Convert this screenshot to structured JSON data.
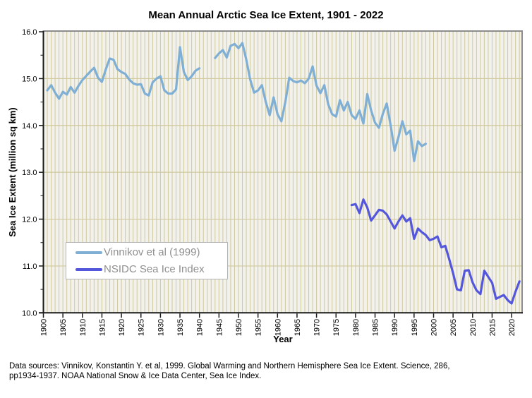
{
  "title": "Mean Annual Arctic Sea Ice Extent, 1901 - 2022",
  "footer": {
    "line1": "Data sources: Vinnikov, Konstantin Y. et al, 1999. Global Warming and Northern Hemisphere Sea Ice Extent. Science, 286,",
    "line2": "pp1934-1937. NOAA National Snow & Ice Data Center, Sea Ice Index."
  },
  "colors": {
    "plot_background": "#F2F1EB",
    "gridline": "#CFC99D",
    "frame_gray": "#8C8C8C",
    "axis_black": "#1A1A1A",
    "legend_border": "#B4B4B4",
    "legend_text": "#8F8F8F"
  },
  "chart_data": {
    "type": "line",
    "title": "Mean Annual Arctic Sea Ice Extent, 1901 - 2022",
    "xlabel": "Year",
    "ylabel": "Sea Ice Extent (million sq km)",
    "xlim": [
      1900,
      2022.5
    ],
    "ylim": [
      10.0,
      16.0
    ],
    "grid": "vertical gridline every year; horizontal gridline every 1.0",
    "legend_position": "inside plot, center-left",
    "x_ticks": [
      1900,
      1905,
      1910,
      1915,
      1920,
      1925,
      1930,
      1935,
      1940,
      1945,
      1950,
      1955,
      1960,
      1965,
      1970,
      1975,
      1980,
      1985,
      1990,
      1995,
      2000,
      2005,
      2010,
      2015,
      2020
    ],
    "x_tick_labels": [
      "1900",
      "1905",
      "1910",
      "1915",
      "1920",
      "1925",
      "1930",
      "1935",
      "1940",
      "1945",
      "1950",
      "1955",
      "1960",
      "1965",
      "1970",
      "1975",
      "1980",
      "1985",
      "1990",
      "1995",
      "2000",
      "2005",
      "2010",
      "2015",
      "2020"
    ],
    "y_ticks": [
      10.0,
      11.0,
      12.0,
      13.0,
      14.0,
      15.0,
      16.0
    ],
    "y_tick_labels": [
      "10.0",
      "11.0",
      "12.0",
      "13.0",
      "14.0",
      "15.0",
      "16.0"
    ],
    "series": [
      {
        "name": "Vinnikov et al (1999)",
        "color": "#7FAFD4",
        "note": "data gap 1941-1943",
        "points": [
          [
            1901,
            14.75
          ],
          [
            1902,
            14.86
          ],
          [
            1903,
            14.7
          ],
          [
            1904,
            14.57
          ],
          [
            1905,
            14.72
          ],
          [
            1906,
            14.66
          ],
          [
            1907,
            14.82
          ],
          [
            1908,
            14.7
          ],
          [
            1909,
            14.85
          ],
          [
            1910,
            14.97
          ],
          [
            1911,
            15.06
          ],
          [
            1912,
            15.15
          ],
          [
            1913,
            15.23
          ],
          [
            1914,
            15.02
          ],
          [
            1915,
            14.93
          ],
          [
            1916,
            15.2
          ],
          [
            1917,
            15.43
          ],
          [
            1918,
            15.4
          ],
          [
            1919,
            15.2
          ],
          [
            1920,
            15.14
          ],
          [
            1921,
            15.1
          ],
          [
            1922,
            14.98
          ],
          [
            1923,
            14.9
          ],
          [
            1924,
            14.87
          ],
          [
            1925,
            14.88
          ],
          [
            1926,
            14.68
          ],
          [
            1927,
            14.64
          ],
          [
            1928,
            14.92
          ],
          [
            1929,
            15.0
          ],
          [
            1930,
            15.05
          ],
          [
            1931,
            14.75
          ],
          [
            1932,
            14.68
          ],
          [
            1933,
            14.68
          ],
          [
            1934,
            14.77
          ],
          [
            1935,
            15.67
          ],
          [
            1936,
            15.14
          ],
          [
            1937,
            14.97
          ],
          [
            1938,
            15.05
          ],
          [
            1939,
            15.17
          ],
          [
            1940,
            15.22
          ],
          [
            1944,
            15.44
          ],
          [
            1945,
            15.54
          ],
          [
            1946,
            15.61
          ],
          [
            1947,
            15.45
          ],
          [
            1948,
            15.7
          ],
          [
            1949,
            15.74
          ],
          [
            1950,
            15.65
          ],
          [
            1951,
            15.76
          ],
          [
            1952,
            15.4
          ],
          [
            1953,
            14.98
          ],
          [
            1954,
            14.7
          ],
          [
            1955,
            14.75
          ],
          [
            1956,
            14.86
          ],
          [
            1957,
            14.5
          ],
          [
            1958,
            14.22
          ],
          [
            1959,
            14.6
          ],
          [
            1960,
            14.24
          ],
          [
            1961,
            14.09
          ],
          [
            1962,
            14.5
          ],
          [
            1963,
            15.02
          ],
          [
            1964,
            14.95
          ],
          [
            1965,
            14.92
          ],
          [
            1966,
            14.96
          ],
          [
            1967,
            14.9
          ],
          [
            1968,
            15.0
          ],
          [
            1969,
            15.26
          ],
          [
            1970,
            14.85
          ],
          [
            1971,
            14.69
          ],
          [
            1972,
            14.86
          ],
          [
            1973,
            14.45
          ],
          [
            1974,
            14.24
          ],
          [
            1975,
            14.19
          ],
          [
            1976,
            14.54
          ],
          [
            1977,
            14.32
          ],
          [
            1978,
            14.5
          ],
          [
            1979,
            14.22
          ],
          [
            1980,
            14.14
          ],
          [
            1981,
            14.32
          ],
          [
            1982,
            14.04
          ],
          [
            1983,
            14.67
          ],
          [
            1984,
            14.32
          ],
          [
            1985,
            14.06
          ],
          [
            1986,
            13.95
          ],
          [
            1987,
            14.25
          ],
          [
            1988,
            14.47
          ],
          [
            1989,
            14.0
          ],
          [
            1990,
            13.46
          ],
          [
            1991,
            13.75
          ],
          [
            1992,
            14.09
          ],
          [
            1993,
            13.81
          ],
          [
            1994,
            13.89
          ],
          [
            1995,
            13.24
          ],
          [
            1996,
            13.66
          ],
          [
            1997,
            13.56
          ],
          [
            1998,
            13.61
          ]
        ]
      },
      {
        "name": "NSIDC Sea Ice Index",
        "color": "#5457DC",
        "points": [
          [
            1979,
            12.3
          ],
          [
            1980,
            12.32
          ],
          [
            1981,
            12.13
          ],
          [
            1982,
            12.42
          ],
          [
            1983,
            12.25
          ],
          [
            1984,
            11.97
          ],
          [
            1985,
            12.08
          ],
          [
            1986,
            12.2
          ],
          [
            1987,
            12.18
          ],
          [
            1988,
            12.1
          ],
          [
            1989,
            11.95
          ],
          [
            1990,
            11.8
          ],
          [
            1991,
            11.95
          ],
          [
            1992,
            12.08
          ],
          [
            1993,
            11.95
          ],
          [
            1994,
            12.02
          ],
          [
            1995,
            11.58
          ],
          [
            1996,
            11.8
          ],
          [
            1997,
            11.72
          ],
          [
            1998,
            11.66
          ],
          [
            1999,
            11.55
          ],
          [
            2000,
            11.58
          ],
          [
            2001,
            11.63
          ],
          [
            2002,
            11.4
          ],
          [
            2003,
            11.43
          ],
          [
            2004,
            11.15
          ],
          [
            2005,
            10.85
          ],
          [
            2006,
            10.5
          ],
          [
            2007,
            10.48
          ],
          [
            2008,
            10.9
          ],
          [
            2009,
            10.91
          ],
          [
            2010,
            10.65
          ],
          [
            2011,
            10.48
          ],
          [
            2012,
            10.4
          ],
          [
            2013,
            10.9
          ],
          [
            2014,
            10.77
          ],
          [
            2015,
            10.64
          ],
          [
            2016,
            10.3
          ],
          [
            2017,
            10.34
          ],
          [
            2018,
            10.38
          ],
          [
            2019,
            10.27
          ],
          [
            2020,
            10.2
          ],
          [
            2021,
            10.45
          ],
          [
            2022,
            10.67
          ]
        ]
      }
    ]
  }
}
